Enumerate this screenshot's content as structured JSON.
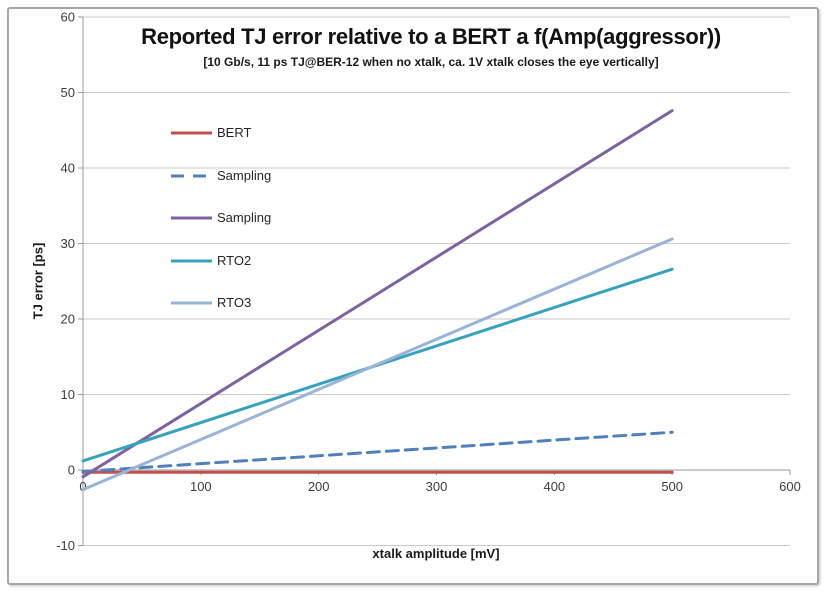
{
  "chart_data": {
    "type": "line",
    "title": "Reported TJ error relative to a BERT a f(Amp(aggressor))",
    "subtitle": "[10 Gb/s, 11 ps TJ@BER-12 when no xtalk, ca. 1V xtalk closes the eye vertically]",
    "xlabel": "xtalk amplitude [mV]",
    "ylabel": "TJ error [ps]",
    "xlim": [
      0,
      600
    ],
    "ylim": [
      -10,
      60
    ],
    "xticks": [
      0,
      100,
      200,
      300,
      400,
      500,
      600
    ],
    "yticks": [
      -10,
      0,
      10,
      20,
      30,
      40,
      50,
      60
    ],
    "grid": "horizontal-only",
    "legend_position": "inside-upper-left",
    "series": [
      {
        "name": "BERT",
        "color": "#C0504D",
        "dash": "solid",
        "x": [
          0,
          500
        ],
        "y": [
          -0.3,
          -0.3
        ]
      },
      {
        "name": "Sampling",
        "color": "#4F81BD",
        "dash": "dashed",
        "x": [
          0,
          500
        ],
        "y": [
          -0.2,
          5.0
        ]
      },
      {
        "name": "Sampling",
        "color": "#7E62A1",
        "dash": "solid",
        "x": [
          0,
          500
        ],
        "y": [
          -0.9,
          47.6
        ]
      },
      {
        "name": "RTO2",
        "color": "#35A2BE",
        "dash": "solid",
        "x": [
          0,
          500
        ],
        "y": [
          1.2,
          26.6
        ]
      },
      {
        "name": "RTO3",
        "color": "#98B4D8",
        "dash": "solid",
        "x": [
          0,
          500
        ],
        "y": [
          -2.6,
          30.6
        ]
      }
    ],
    "style": {
      "grid_color": "#C9C9C9",
      "axis_color": "#9A9A9A",
      "tick_label_color": "#3D3D3D",
      "frame_border_color": "#A6A6A6",
      "line_width": 3,
      "dash_pattern": "12 7"
    }
  }
}
